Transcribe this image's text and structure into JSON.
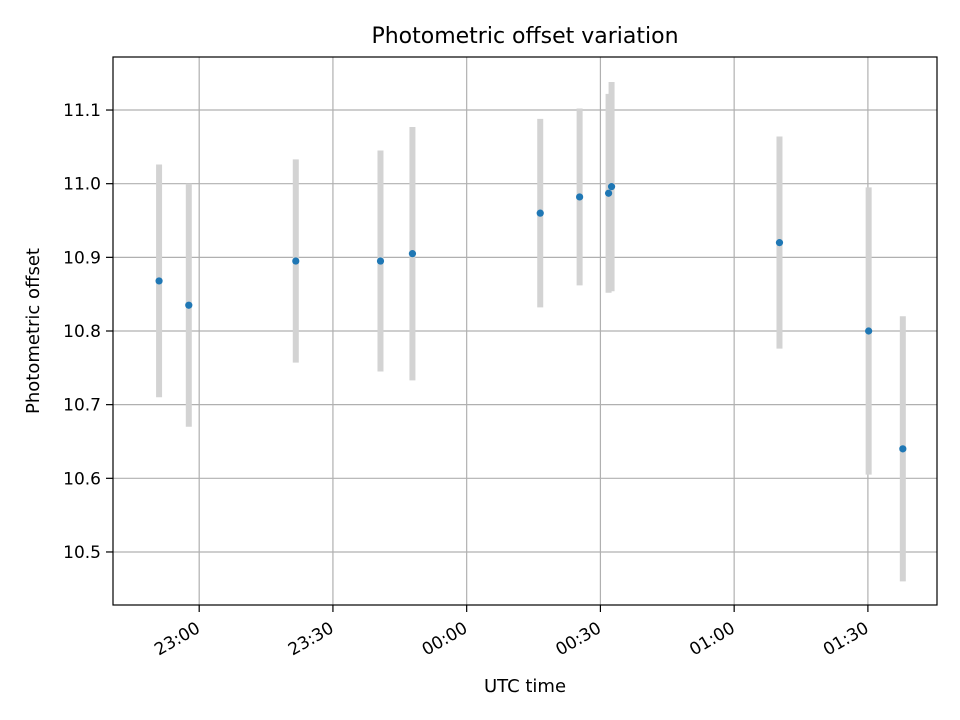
{
  "chart_data": {
    "type": "scatter",
    "title": "Photometric offset variation",
    "xlabel": "UTC time",
    "ylabel": "Photometric offset",
    "xlim": [
      "22:40:40",
      "01:45:30"
    ],
    "ylim": [
      10.428,
      11.172
    ],
    "x_date_anchor": "2000-01-01",
    "grid": true,
    "x_ticks": [
      {
        "t": "23:00:00",
        "label": "23:00"
      },
      {
        "t": "23:30:00",
        "label": "23:30"
      },
      {
        "t": "00:00:00",
        "label": "00:00"
      },
      {
        "t": "00:30:00",
        "label": "00:30"
      },
      {
        "t": "01:00:00",
        "label": "01:00"
      },
      {
        "t": "01:30:00",
        "label": "01:30"
      }
    ],
    "y_ticks": [
      10.5,
      10.6,
      10.7,
      10.8,
      10.9,
      11.0,
      11.1
    ],
    "y_tick_labels": [
      "10.5",
      "10.6",
      "10.7",
      "10.8",
      "10.9",
      "11.0",
      "11.1"
    ],
    "point_color": "#1f77b4",
    "errorbar_color": "#d3d3d3",
    "points": [
      {
        "t": "22:51:00",
        "y": 10.868,
        "err": 0.158
      },
      {
        "t": "22:57:40",
        "y": 10.835,
        "err": 0.165
      },
      {
        "t": "23:21:40",
        "y": 10.895,
        "err": 0.138
      },
      {
        "t": "23:40:40",
        "y": 10.895,
        "err": 0.15
      },
      {
        "t": "23:47:50",
        "y": 10.905,
        "err": 0.172
      },
      {
        "t": "00:16:30",
        "y": 10.96,
        "err": 0.128
      },
      {
        "t": "00:25:20",
        "y": 10.982,
        "err": 0.12
      },
      {
        "t": "00:31:50",
        "y": 10.987,
        "err": 0.135
      },
      {
        "t": "00:32:30",
        "y": 10.996,
        "err": 0.142
      },
      {
        "t": "01:10:10",
        "y": 10.92,
        "err": 0.144
      },
      {
        "t": "01:30:10",
        "y": 10.8,
        "err": 0.195
      },
      {
        "t": "01:37:50",
        "y": 10.64,
        "err": 0.18
      }
    ]
  }
}
